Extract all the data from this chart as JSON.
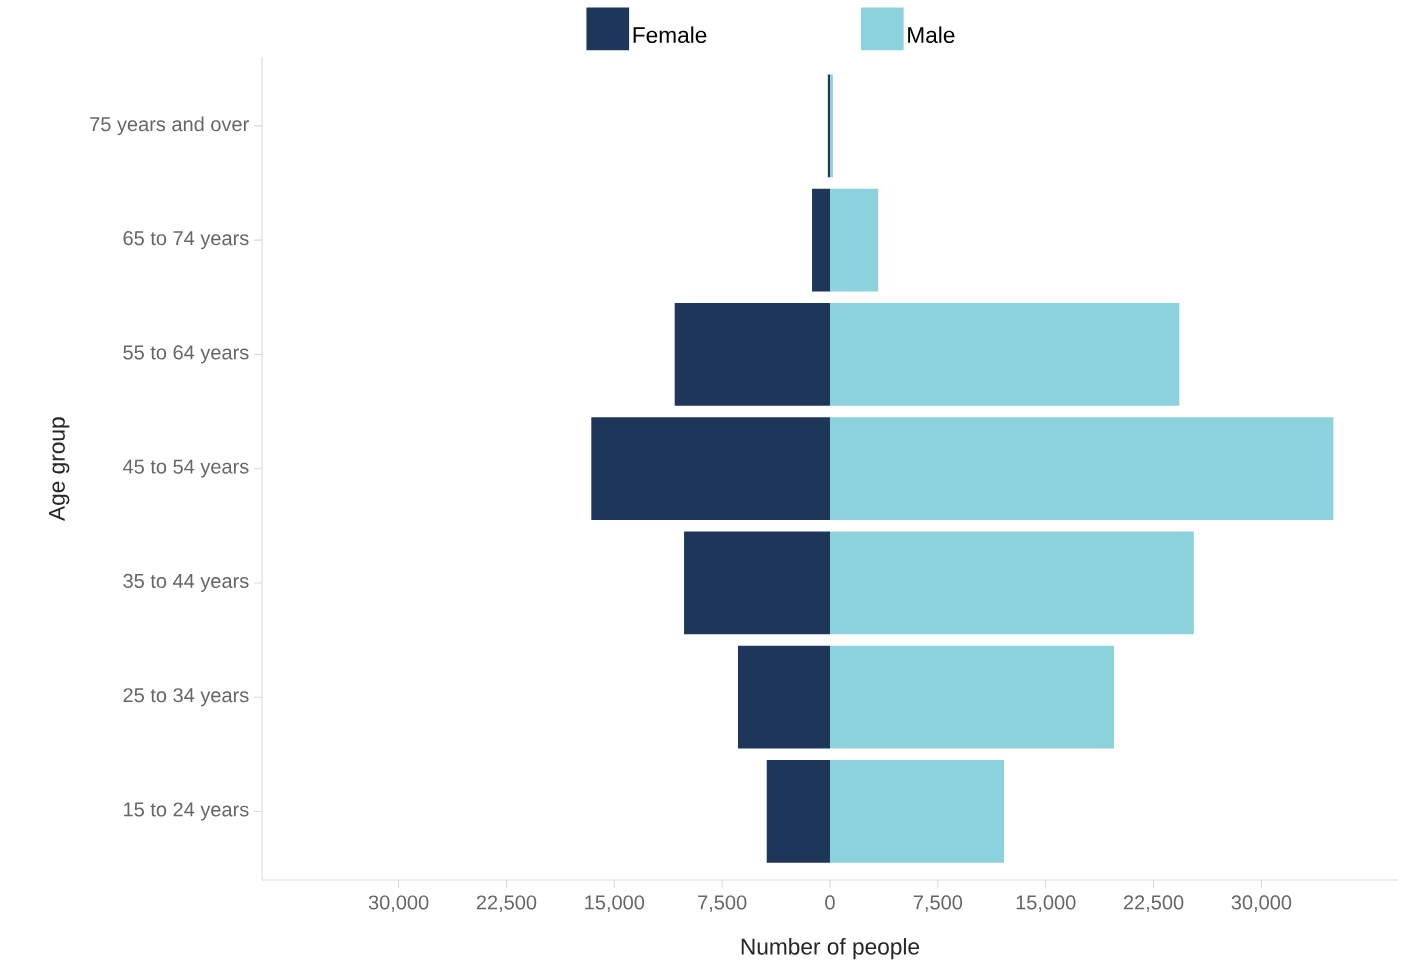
{
  "chart_data": [
    {
      "type": "bar",
      "orientation": "horizontal",
      "xlabel": "Number of people",
      "ylabel": "Age group",
      "categories": [
        "75 years and over",
        "65 to 74 years",
        "55 to 64 years",
        "45 to 54 years",
        "35 to 44 years",
        "25 to 34 years",
        "15 to 24 years"
      ],
      "series": [
        {
          "name": "Female",
          "color": "#1e3659",
          "values": [
            150,
            1250,
            10800,
            16600,
            10150,
            6400,
            4400
          ]
        }
      ],
      "xlim": [
        39500,
        0
      ],
      "xticks": [
        {
          "value": 30000,
          "label": "30,000"
        },
        {
          "value": 22500,
          "label": "22,500"
        },
        {
          "value": 15000,
          "label": "15,000"
        },
        {
          "value": 7500,
          "label": "7,500"
        }
      ],
      "grid": false,
      "legend": "top"
    },
    {
      "type": "bar",
      "orientation": "horizontal",
      "categories": [
        null,
        null,
        null,
        null,
        null,
        null,
        null
      ],
      "series": [
        {
          "name": "Male",
          "color": "#8bd2dd",
          "values": [
            200,
            3350,
            24300,
            35000,
            25300,
            19750,
            12100
          ]
        }
      ],
      "xlim": [
        0,
        39500
      ],
      "xticks": [
        0,
        {
          "value": 7500,
          "label": "7,500"
        },
        {
          "value": 15000,
          "label": "15,000"
        },
        {
          "value": 22500,
          "label": "22,500"
        },
        {
          "value": 30000,
          "label": "30,000"
        }
      ],
      "tick_labels": "x",
      "grid": false,
      "legend": "top"
    }
  ]
}
